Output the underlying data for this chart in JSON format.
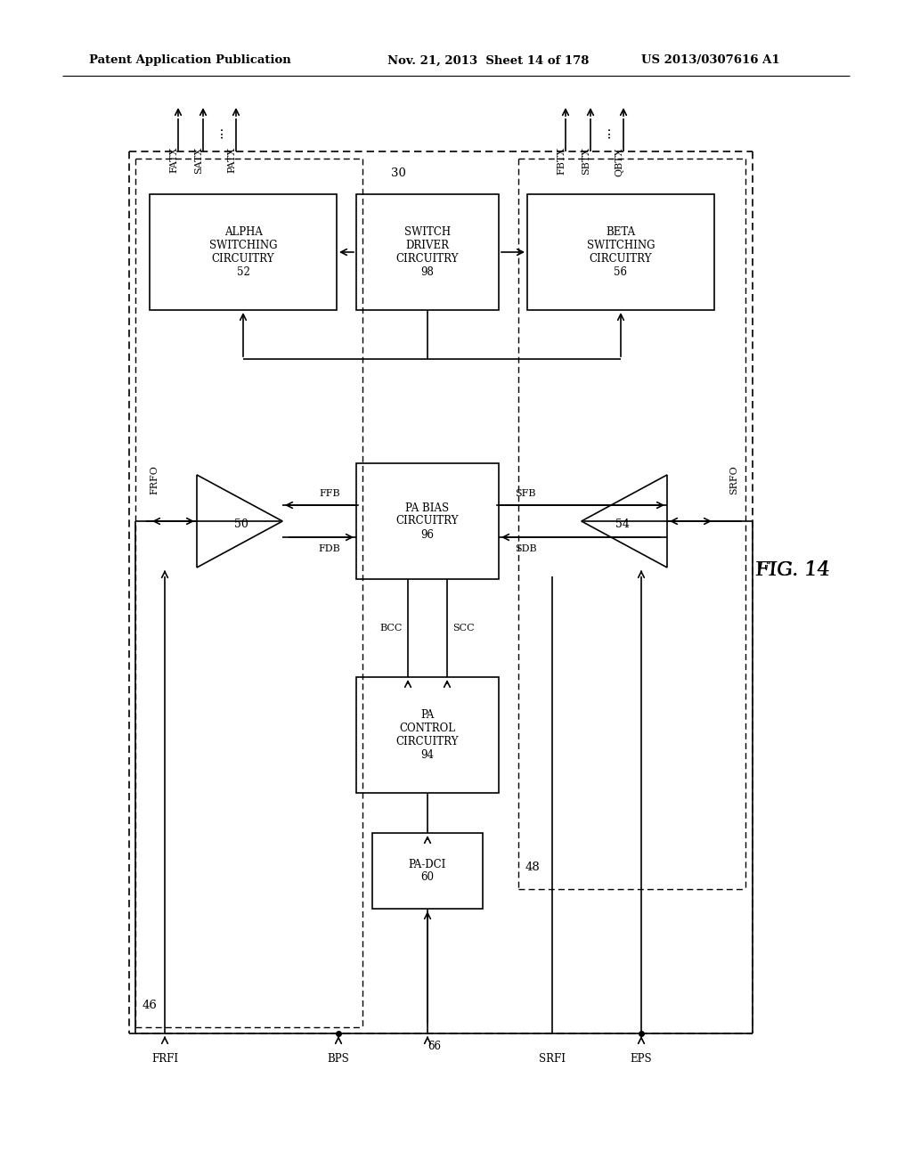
{
  "title_left": "Patent Application Publication",
  "title_mid": "Nov. 21, 2013  Sheet 14 of 178",
  "title_right": "US 2013/0307616 A1",
  "fig_label": "FIG. 14",
  "background": "#ffffff"
}
